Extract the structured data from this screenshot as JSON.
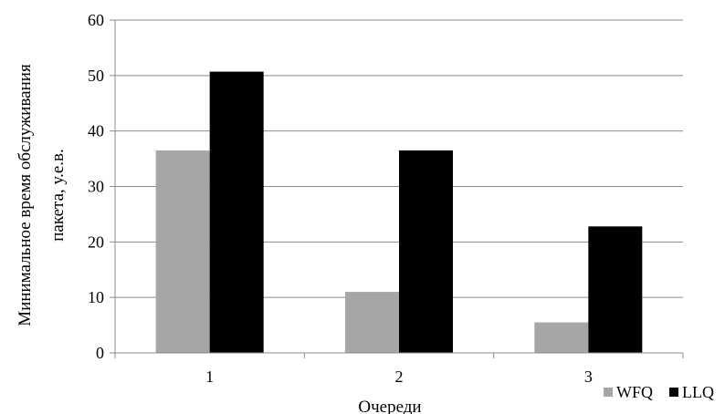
{
  "chart_data": {
    "type": "bar",
    "categories": [
      "1",
      "2",
      "3"
    ],
    "series": [
      {
        "name": "WFQ",
        "values": [
          36.5,
          11,
          5.5
        ],
        "color": "#a6a6a6"
      },
      {
        "name": "LLQ",
        "values": [
          50.7,
          36.5,
          22.8
        ],
        "color": "#000000"
      }
    ],
    "xlabel": "Очереди",
    "ylabel_lines": [
      "Минимальное время обслуживания",
      "пакета, у.е.в."
    ],
    "ylim": [
      0,
      60
    ],
    "yticks": [
      "0",
      "10",
      "20",
      "30",
      "40",
      "50",
      "60"
    ],
    "grid": true,
    "legend_position": "bottom-right",
    "gridline_color": "#8c8c8c"
  }
}
